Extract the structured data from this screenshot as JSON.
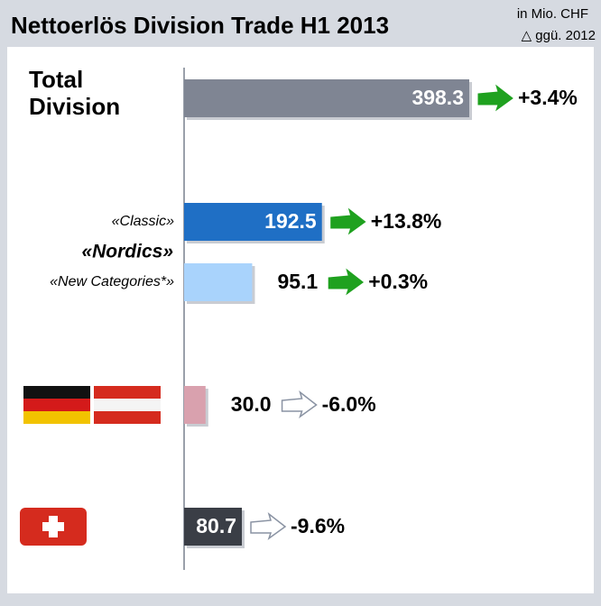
{
  "chart_data": {
    "type": "bar",
    "title": "Nettoerlös Division Trade H1 2013",
    "unit_note": "in Mio. CHF",
    "change_note": "△ ggü. 2012",
    "group_label": "«Nordics»",
    "categories": [
      "Total Division",
      "«Classic»",
      "«New Categories*»",
      null,
      null
    ],
    "values": [
      398.3,
      192.5,
      95.1,
      30.0,
      80.7
    ],
    "value_labels": [
      "398.3",
      "192.5",
      "95.1",
      "30.0",
      "80.7"
    ],
    "colors": [
      "#7f8593",
      "#1f6fc5",
      "#a9d3fc",
      "#d9a1ae",
      "#3a3e46"
    ],
    "changes": [
      3.4,
      13.8,
      0.3,
      -6.0,
      -9.6
    ],
    "change_labels": [
      "+3.4%",
      "+13.8%",
      "+0.3%",
      "-6.0%",
      "-9.6%"
    ]
  }
}
